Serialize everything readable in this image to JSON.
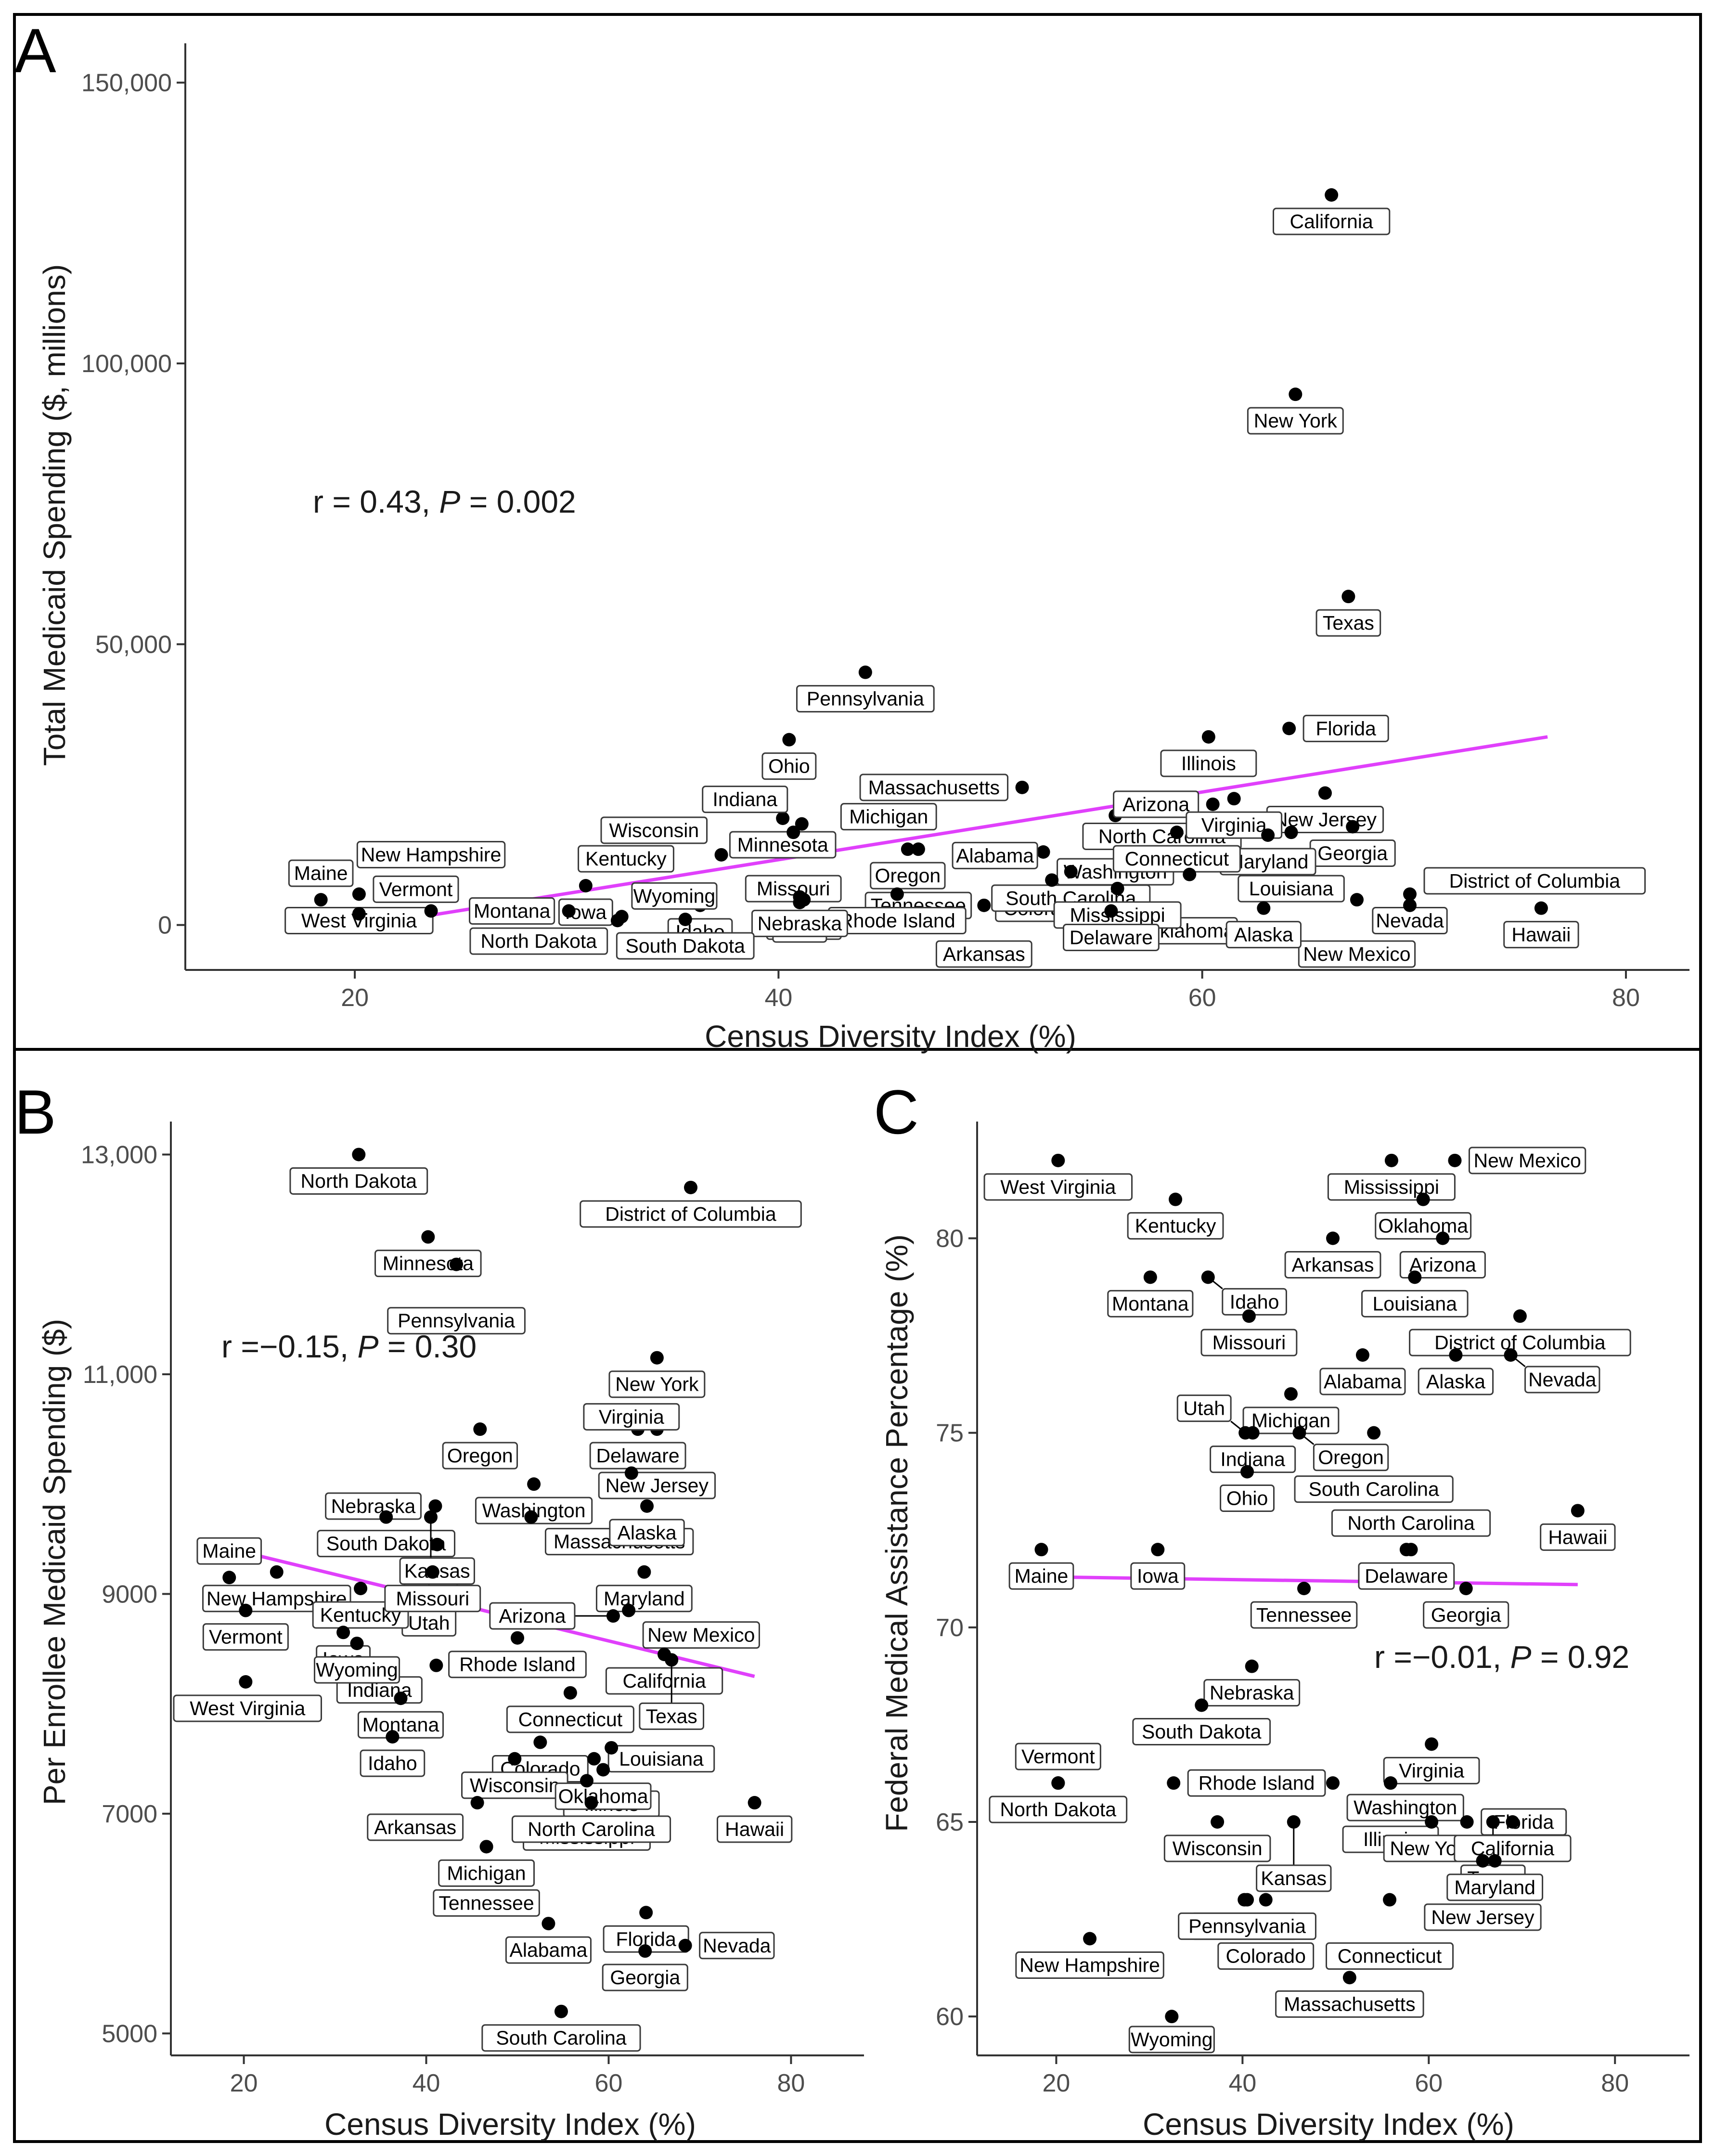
{
  "colors": {
    "point": "#000000",
    "trend": "#e040fb",
    "axis": "#333333",
    "frame": "#000000"
  },
  "chart_data": [
    {
      "type": "scatter",
      "panel_label": "A",
      "xlabel": "Census Diversity Index (%)",
      "ylabel": "Total Medicaid Spending ($, millions)",
      "xlim": [
        12,
        83
      ],
      "ylim": [
        -8000,
        157000
      ],
      "xticks": [
        20,
        40,
        60,
        80
      ],
      "yticks": [
        0,
        50000,
        100000,
        150000
      ],
      "ytick_labels": [
        "0",
        "50,000",
        "100,000",
        "150,000"
      ],
      "annotation": {
        "r": "r = 0.43, ",
        "p_letter": "P",
        "p_value": " = 0.002"
      },
      "trend": {
        "x": [
          20.7,
          76.3
        ],
        "y": [
          0,
          33500
        ]
      },
      "points": [
        {
          "state": "California",
          "x": 66.1,
          "y": 130000
        },
        {
          "state": "New York",
          "x": 64.4,
          "y": 94500
        },
        {
          "state": "Texas",
          "x": 66.9,
          "y": 58500
        },
        {
          "state": "Pennsylvania",
          "x": 44.1,
          "y": 45000
        },
        {
          "state": "Illinois",
          "x": 60.3,
          "y": 33500
        },
        {
          "state": "Florida",
          "x": 64.1,
          "y": 35000
        },
        {
          "state": "Ohio",
          "x": 40.5,
          "y": 33000
        },
        {
          "state": "North Carolina",
          "x": 58.1,
          "y": 20500
        },
        {
          "state": "Michigan",
          "x": 45.2,
          "y": 24000
        },
        {
          "state": "New Jersey",
          "x": 65.8,
          "y": 23500
        },
        {
          "state": "Massachusetts",
          "x": 51.5,
          "y": 24500
        },
        {
          "state": "Washington",
          "x": 55.9,
          "y": 19500
        },
        {
          "state": "Arizona",
          "x": 60.5,
          "y": 21500
        },
        {
          "state": "Georgia",
          "x": 67.1,
          "y": 17500
        },
        {
          "state": "Virginia",
          "x": 61.5,
          "y": 22500
        },
        {
          "state": "Minnesota",
          "x": 40.2,
          "y": 19000
        },
        {
          "state": "Indiana",
          "x": 41.1,
          "y": 18000
        },
        {
          "state": "Missouri",
          "x": 40.7,
          "y": 16500
        },
        {
          "state": "Louisiana",
          "x": 64.2,
          "y": 16500
        },
        {
          "state": "Maryland",
          "x": 63.1,
          "y": 16000
        },
        {
          "state": "Kentucky",
          "x": 32.8,
          "y": 16500
        },
        {
          "state": "Oregon",
          "x": 46.1,
          "y": 13500
        },
        {
          "state": "Wisconsin",
          "x": 37.3,
          "y": 12500
        },
        {
          "state": "Connecticut",
          "x": 58.8,
          "y": 16500
        },
        {
          "state": "Tennessee",
          "x": 46.6,
          "y": 13500
        },
        {
          "state": "Colorado",
          "x": 52.5,
          "y": 13000
        },
        {
          "state": "South Carolina",
          "x": 53.8,
          "y": 9500
        },
        {
          "state": "Oklahoma",
          "x": 59.4,
          "y": 9000
        },
        {
          "state": "Alabama",
          "x": 52.9,
          "y": 8000
        },
        {
          "state": "Mississippi",
          "x": 56.0,
          "y": 6500
        },
        {
          "state": "Arkansas",
          "x": 49.7,
          "y": 3500
        },
        {
          "state": "Nevada",
          "x": 69.8,
          "y": 5500
        },
        {
          "state": "New Mexico",
          "x": 67.3,
          "y": 4500
        },
        {
          "state": "Kansas",
          "x": 41.2,
          "y": 4500
        },
        {
          "state": "Utah",
          "x": 41.0,
          "y": 4000
        },
        {
          "state": "Iowa",
          "x": 30.9,
          "y": 7000
        },
        {
          "state": "West Virginia",
          "x": 20.2,
          "y": 5500
        },
        {
          "state": "Maine",
          "x": 18.4,
          "y": 4500
        },
        {
          "state": "Rhode Island",
          "x": 45.6,
          "y": 5500
        },
        {
          "state": "Delaware",
          "x": 55.7,
          "y": 2500
        },
        {
          "state": "Alaska",
          "x": 62.9,
          "y": 3000
        },
        {
          "state": "Hawaii",
          "x": 76.0,
          "y": 3000
        },
        {
          "state": "Idaho",
          "x": 36.3,
          "y": 3500
        },
        {
          "state": "Nebraska",
          "x": 41.0,
          "y": 5000
        },
        {
          "state": "District of Columbia",
          "x": 69.8,
          "y": 3500
        },
        {
          "state": "Montana",
          "x": 30.1,
          "y": 2500
        },
        {
          "state": "North Dakota",
          "x": 32.6,
          "y": 1500
        },
        {
          "state": "South Dakota",
          "x": 35.6,
          "y": 1000
        },
        {
          "state": "Vermont",
          "x": 20.2,
          "y": 2000
        },
        {
          "state": "New Hampshire",
          "x": 23.6,
          "y": 2500
        },
        {
          "state": "Wyoming",
          "x": 32.4,
          "y": 800
        }
      ]
    },
    {
      "type": "scatter",
      "panel_label": "B",
      "xlabel": "Census Diversity Index (%)",
      "ylabel": "Per Enrollee Medicaid Spending ($)",
      "xlim": [
        12,
        88
      ],
      "ylim": [
        4800,
        13300
      ],
      "xticks": [
        20,
        40,
        60,
        80
      ],
      "yticks": [
        5000,
        7000,
        9000,
        11000,
        13000
      ],
      "ytick_labels": [
        "5000",
        "7000",
        "9000",
        "11,000",
        "13,000"
      ],
      "annotation": {
        "r": "r =−0.15, ",
        "p_letter": "P",
        "p_value": " = 0.30"
      },
      "trend": {
        "x": [
          20,
          76
        ],
        "y": [
          9380,
          8250
        ]
      },
      "points": [
        {
          "state": "North Dakota",
          "x": 32.6,
          "y": 13000
        },
        {
          "state": "District of Columbia",
          "x": 69.0,
          "y": 12700
        },
        {
          "state": "Minnesota",
          "x": 40.2,
          "y": 12250
        },
        {
          "state": "Pennsylvania",
          "x": 43.3,
          "y": 12000
        },
        {
          "state": "New York",
          "x": 65.3,
          "y": 11150
        },
        {
          "state": "Oregon",
          "x": 45.9,
          "y": 10500
        },
        {
          "state": "Delaware",
          "x": 63.2,
          "y": 10500
        },
        {
          "state": "New Jersey",
          "x": 65.3,
          "y": 10500
        },
        {
          "state": "Washington",
          "x": 51.8,
          "y": 10000
        },
        {
          "state": "Nebraska",
          "x": 41.0,
          "y": 9800
        },
        {
          "state": "South Dakota",
          "x": 35.6,
          "y": 9700
        },
        {
          "state": "Virginia",
          "x": 62.5,
          "y": 10100
        },
        {
          "state": "Massachusetts",
          "x": 51.5,
          "y": 9700
        },
        {
          "state": "Ohio",
          "x": 40.5,
          "y": 9700
        },
        {
          "state": "Alaska",
          "x": 64.2,
          "y": 9800
        },
        {
          "state": "Utah",
          "x": 40.3,
          "y": 9250
        },
        {
          "state": "Kansas",
          "x": 41.2,
          "y": 9450
        },
        {
          "state": "Maryland",
          "x": 63.9,
          "y": 9200
        },
        {
          "state": "New Hampshire",
          "x": 23.6,
          "y": 9200
        },
        {
          "state": "Kentucky",
          "x": 32.8,
          "y": 9050
        },
        {
          "state": "Maine",
          "x": 18.4,
          "y": 9150
        },
        {
          "state": "Missouri",
          "x": 40.7,
          "y": 9200
        },
        {
          "state": "Rhode Island",
          "x": 50.0,
          "y": 8600
        },
        {
          "state": "New Mexico",
          "x": 62.2,
          "y": 8850
        },
        {
          "state": "Vermont",
          "x": 20.2,
          "y": 8850
        },
        {
          "state": "Iowa",
          "x": 30.9,
          "y": 8650
        },
        {
          "state": "Arizona",
          "x": 60.5,
          "y": 8800
        },
        {
          "state": "California",
          "x": 66.1,
          "y": 8450
        },
        {
          "state": "Texas",
          "x": 66.9,
          "y": 8400
        },
        {
          "state": "Indiana",
          "x": 41.1,
          "y": 8350
        },
        {
          "state": "Wyoming",
          "x": 32.4,
          "y": 8550
        },
        {
          "state": "Connecticut",
          "x": 55.8,
          "y": 8100
        },
        {
          "state": "West Virginia",
          "x": 20.2,
          "y": 8200
        },
        {
          "state": "Montana",
          "x": 37.2,
          "y": 8050
        },
        {
          "state": "Colorado",
          "x": 52.5,
          "y": 7650
        },
        {
          "state": "Louisiana",
          "x": 58.4,
          "y": 7500
        },
        {
          "state": "Illinois",
          "x": 60.3,
          "y": 7600
        },
        {
          "state": "Idaho",
          "x": 36.3,
          "y": 7700
        },
        {
          "state": "Wisconsin",
          "x": 49.7,
          "y": 7500
        },
        {
          "state": "Oklahoma",
          "x": 59.4,
          "y": 7400
        },
        {
          "state": "Mississippi",
          "x": 57.6,
          "y": 7300
        },
        {
          "state": "Arkansas",
          "x": 45.6,
          "y": 7100
        },
        {
          "state": "Michigan",
          "x": 46.6,
          "y": 6700
        },
        {
          "state": "Hawaii",
          "x": 76.0,
          "y": 7100
        },
        {
          "state": "North Carolina",
          "x": 58.1,
          "y": 7100
        },
        {
          "state": "Tennessee",
          "x": 46.6,
          "y": 6700
        },
        {
          "state": "Alabama",
          "x": 53.4,
          "y": 6000
        },
        {
          "state": "Florida",
          "x": 64.1,
          "y": 6100
        },
        {
          "state": "Georgia",
          "x": 64.0,
          "y": 5750
        },
        {
          "state": "Nevada",
          "x": 68.4,
          "y": 5800
        },
        {
          "state": "South Carolina",
          "x": 54.8,
          "y": 5200
        }
      ]
    },
    {
      "type": "scatter",
      "panel_label": "C",
      "xlabel": "Census Diversity Index (%)",
      "ylabel": "Federal Medical Assistance Percentage  (%)",
      "xlim": [
        11.5,
        88
      ],
      "ylim": [
        59,
        83
      ],
      "xticks": [
        20,
        40,
        60,
        80
      ],
      "yticks": [
        60,
        65,
        70,
        75,
        80
      ],
      "ytick_labels": [
        "60",
        "65",
        "70",
        "75",
        "80"
      ],
      "annotation": {
        "r": "r =−0.01, ",
        "p_letter": "P",
        "p_value": " = 0.92"
      },
      "trend": {
        "x": [
          18.4,
          76
        ],
        "y": [
          71.3,
          71.1
        ]
      },
      "points": [
        {
          "state": "West Virginia",
          "x": 20.2,
          "y": 82
        },
        {
          "state": "Mississippi",
          "x": 56.0,
          "y": 82
        },
        {
          "state": "New Mexico",
          "x": 62.8,
          "y": 82
        },
        {
          "state": "Oklahoma",
          "x": 59.4,
          "y": 81
        },
        {
          "state": "Kentucky",
          "x": 32.8,
          "y": 81
        },
        {
          "state": "Arkansas",
          "x": 49.7,
          "y": 80
        },
        {
          "state": "Arizona",
          "x": 61.5,
          "y": 80
        },
        {
          "state": "Montana",
          "x": 30.1,
          "y": 79
        },
        {
          "state": "Idaho",
          "x": 36.3,
          "y": 79
        },
        {
          "state": "Louisiana",
          "x": 58.5,
          "y": 79
        },
        {
          "state": "District of Columbia",
          "x": 69.8,
          "y": 78
        },
        {
          "state": "Missouri",
          "x": 40.7,
          "y": 78
        },
        {
          "state": "Alabama",
          "x": 52.9,
          "y": 77
        },
        {
          "state": "Alaska",
          "x": 62.9,
          "y": 77
        },
        {
          "state": "Nevada",
          "x": 68.8,
          "y": 77
        },
        {
          "state": "Michigan",
          "x": 45.2,
          "y": 76
        },
        {
          "state": "Indiana",
          "x": 41.1,
          "y": 75
        },
        {
          "state": "Oregon",
          "x": 46.1,
          "y": 75
        },
        {
          "state": "South Carolina",
          "x": 54.1,
          "y": 75
        },
        {
          "state": "Utah",
          "x": 40.3,
          "y": 75
        },
        {
          "state": "Ohio",
          "x": 40.5,
          "y": 74
        },
        {
          "state": "Hawaii",
          "x": 76.0,
          "y": 73
        },
        {
          "state": "Maine",
          "x": 18.4,
          "y": 72
        },
        {
          "state": "Iowa",
          "x": 30.9,
          "y": 72
        },
        {
          "state": "Delaware",
          "x": 57.6,
          "y": 72
        },
        {
          "state": "North Carolina",
          "x": 58.1,
          "y": 72
        },
        {
          "state": "Tennessee",
          "x": 46.6,
          "y": 71
        },
        {
          "state": "Georgia",
          "x": 64.0,
          "y": 71
        },
        {
          "state": "Nebraska",
          "x": 41.0,
          "y": 69
        },
        {
          "state": "South Dakota",
          "x": 35.6,
          "y": 68
        },
        {
          "state": "Virginia",
          "x": 60.3,
          "y": 67
        },
        {
          "state": "North Dakota",
          "x": 20.2,
          "y": 66
        },
        {
          "state": "Rhode Island",
          "x": 32.6,
          "y": 66
        },
        {
          "state": "Washington",
          "x": 49.7,
          "y": 66
        },
        {
          "state": "Vermont",
          "x": 20.2,
          "y": 66
        },
        {
          "state": "Illinois",
          "x": 55.9,
          "y": 66
        },
        {
          "state": "Florida",
          "x": 64.1,
          "y": 65
        },
        {
          "state": "Texas",
          "x": 66.9,
          "y": 65
        },
        {
          "state": "Wisconsin",
          "x": 37.3,
          "y": 65
        },
        {
          "state": "Kansas",
          "x": 45.5,
          "y": 65
        },
        {
          "state": "New York",
          "x": 60.3,
          "y": 65
        },
        {
          "state": "California",
          "x": 69.0,
          "y": 65
        },
        {
          "state": "New Jersey",
          "x": 65.8,
          "y": 64
        },
        {
          "state": "Maryland",
          "x": 67.1,
          "y": 64
        },
        {
          "state": "Minnesota",
          "x": 40.2,
          "y": 63
        },
        {
          "state": "Colorado",
          "x": 42.5,
          "y": 63
        },
        {
          "state": "Pennsylvania",
          "x": 40.5,
          "y": 63
        },
        {
          "state": "Connecticut",
          "x": 55.8,
          "y": 63
        },
        {
          "state": "New Hampshire",
          "x": 23.6,
          "y": 62
        },
        {
          "state": "Massachusetts",
          "x": 51.5,
          "y": 61
        },
        {
          "state": "Wyoming",
          "x": 32.4,
          "y": 60
        }
      ]
    }
  ]
}
